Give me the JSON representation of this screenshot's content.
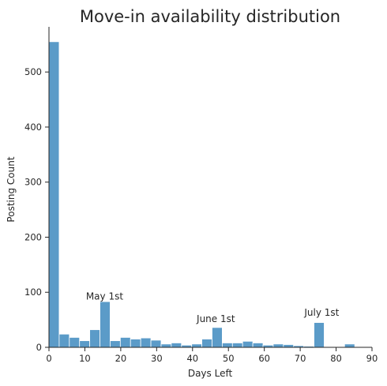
{
  "chart_data": {
    "type": "bar",
    "title": "Move-in availability distribution",
    "xlabel": "Days Left",
    "ylabel": "Posting Count",
    "xlim": [
      0,
      90
    ],
    "ylim": [
      0,
      582
    ],
    "x_ticks": [
      0,
      10,
      20,
      30,
      40,
      50,
      60,
      70,
      80,
      90
    ],
    "y_ticks": [
      0,
      100,
      200,
      300,
      400,
      500
    ],
    "grid": false,
    "bar_color": "#5b9bc8",
    "bin_width": 2.84,
    "bins": [
      {
        "x0": 0.0,
        "value": 555
      },
      {
        "x0": 2.84,
        "value": 24
      },
      {
        "x0": 5.68,
        "value": 18
      },
      {
        "x0": 8.52,
        "value": 12
      },
      {
        "x0": 11.36,
        "value": 32
      },
      {
        "x0": 14.2,
        "value": 83
      },
      {
        "x0": 17.04,
        "value": 12
      },
      {
        "x0": 19.88,
        "value": 18
      },
      {
        "x0": 22.72,
        "value": 15
      },
      {
        "x0": 25.56,
        "value": 17
      },
      {
        "x0": 28.4,
        "value": 13
      },
      {
        "x0": 31.24,
        "value": 6
      },
      {
        "x0": 34.08,
        "value": 8
      },
      {
        "x0": 36.92,
        "value": 4
      },
      {
        "x0": 39.76,
        "value": 6
      },
      {
        "x0": 42.6,
        "value": 15
      },
      {
        "x0": 45.44,
        "value": 36
      },
      {
        "x0": 48.28,
        "value": 8
      },
      {
        "x0": 51.12,
        "value": 8
      },
      {
        "x0": 53.96,
        "value": 11
      },
      {
        "x0": 56.8,
        "value": 8
      },
      {
        "x0": 59.64,
        "value": 4
      },
      {
        "x0": 62.48,
        "value": 6
      },
      {
        "x0": 65.32,
        "value": 5
      },
      {
        "x0": 68.16,
        "value": 3
      },
      {
        "x0": 71.0,
        "value": 2
      },
      {
        "x0": 73.84,
        "value": 45
      },
      {
        "x0": 76.68,
        "value": 0
      },
      {
        "x0": 79.52,
        "value": 0
      },
      {
        "x0": 82.36,
        "value": 6
      }
    ],
    "annotations": [
      {
        "text": "May 1st",
        "x": 15.5,
        "y": 87
      },
      {
        "text": "June 1st",
        "x": 46.5,
        "y": 46
      },
      {
        "text": "July 1st",
        "x": 76,
        "y": 57
      }
    ]
  }
}
